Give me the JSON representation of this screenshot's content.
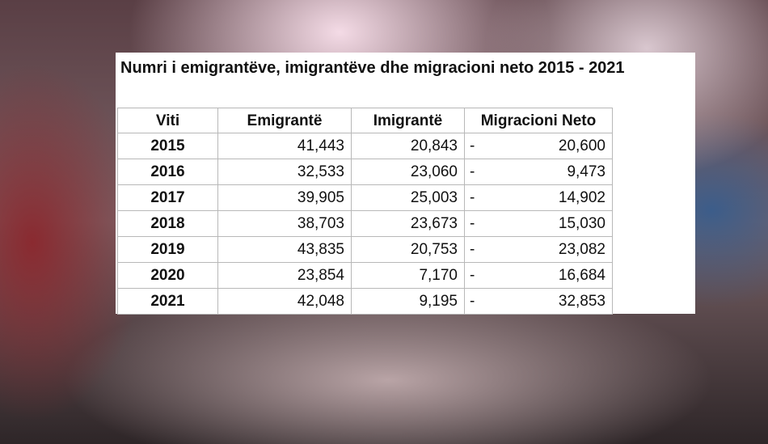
{
  "title": "Numri i emigrantëve, imigrantëve dhe migracioni neto 2015 - 2021",
  "table": {
    "headers": [
      "Viti",
      "Emigrantë",
      "Imigrantë",
      "Migracioni Neto"
    ],
    "rows": [
      [
        "2015",
        "41,443",
        "20,843",
        "-",
        "20,600"
      ],
      [
        "2016",
        "32,533",
        "23,060",
        "-",
        "9,473"
      ],
      [
        "2017",
        "39,905",
        "25,003",
        "-",
        "14,902"
      ],
      [
        "2018",
        "38,703",
        "23,673",
        "-",
        "15,030"
      ],
      [
        "2019",
        "43,835",
        "20,753",
        "-",
        "23,082"
      ],
      [
        "2020",
        "23,854",
        "7,170",
        "-",
        "16,684"
      ],
      [
        "2021",
        "42,048",
        "9,195",
        "-",
        "32,853"
      ]
    ]
  }
}
